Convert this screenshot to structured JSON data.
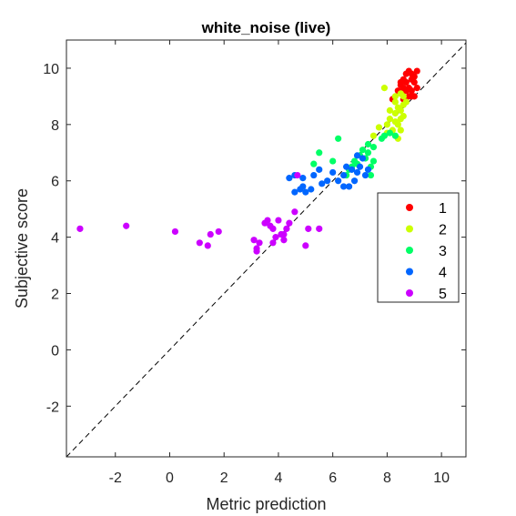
{
  "chart_data": {
    "type": "scatter",
    "title": "white_noise (live)",
    "xlabel": "Metric prediction",
    "ylabel": "Subjective score",
    "xlim": [
      -3.8,
      10.9
    ],
    "ylim": [
      -3.8,
      11.0
    ],
    "xticks": [
      -2,
      0,
      2,
      4,
      6,
      8,
      10
    ],
    "yticks": [
      -2,
      0,
      2,
      4,
      6,
      8,
      10
    ],
    "grid": false,
    "reference_line": "identity (y = x), dashed",
    "legend_position": "right",
    "series": [
      {
        "name": "1",
        "color": "#ff0000",
        "points": [
          [
            8.5,
            9.4
          ],
          [
            8.6,
            9.6
          ],
          [
            8.7,
            9.8
          ],
          [
            8.8,
            9.9
          ],
          [
            8.9,
            9.6
          ],
          [
            9.0,
            9.5
          ],
          [
            9.1,
            9.9
          ],
          [
            8.6,
            9.3
          ],
          [
            8.7,
            9.2
          ],
          [
            8.9,
            9.2
          ],
          [
            9.0,
            9.0
          ],
          [
            8.8,
            9.0
          ],
          [
            8.5,
            9.1
          ],
          [
            8.4,
            9.2
          ],
          [
            8.6,
            8.9
          ],
          [
            9.0,
            9.7
          ],
          [
            8.7,
            9.5
          ],
          [
            8.8,
            9.3
          ],
          [
            9.1,
            9.3
          ],
          [
            8.9,
            9.8
          ],
          [
            8.5,
            9.5
          ],
          [
            8.9,
            9.0
          ],
          [
            8.2,
            8.9
          ]
        ]
      },
      {
        "name": "2",
        "color": "#ccff00",
        "points": [
          [
            7.9,
            9.3
          ],
          [
            8.3,
            9.0
          ],
          [
            8.5,
            9.1
          ],
          [
            8.6,
            9.0
          ],
          [
            8.4,
            8.6
          ],
          [
            8.5,
            8.5
          ],
          [
            8.7,
            8.8
          ],
          [
            8.6,
            8.3
          ],
          [
            8.3,
            8.4
          ],
          [
            8.5,
            8.2
          ],
          [
            8.1,
            8.2
          ],
          [
            8.2,
            7.8
          ],
          [
            8.5,
            7.8
          ],
          [
            8.4,
            8.0
          ],
          [
            8.0,
            8.0
          ],
          [
            7.7,
            7.9
          ],
          [
            7.5,
            7.6
          ],
          [
            8.3,
            8.8
          ],
          [
            8.6,
            8.7
          ],
          [
            8.1,
            8.5
          ],
          [
            8.0,
            7.7
          ],
          [
            8.4,
            7.5
          ],
          [
            8.3,
            8.1
          ]
        ]
      },
      {
        "name": "3",
        "color": "#00ff66",
        "points": [
          [
            8.1,
            7.7
          ],
          [
            8.3,
            7.6
          ],
          [
            7.9,
            7.6
          ],
          [
            7.8,
            7.5
          ],
          [
            7.3,
            7.3
          ],
          [
            7.5,
            7.2
          ],
          [
            7.1,
            7.1
          ],
          [
            7.3,
            7.0
          ],
          [
            7.0,
            6.9
          ],
          [
            6.9,
            6.6
          ],
          [
            6.6,
            6.4
          ],
          [
            7.5,
            6.7
          ],
          [
            7.4,
            6.5
          ],
          [
            7.2,
            6.8
          ],
          [
            6.5,
            6.2
          ],
          [
            6.0,
            6.7
          ],
          [
            5.5,
            7.0
          ],
          [
            6.2,
            7.5
          ],
          [
            5.3,
            6.6
          ],
          [
            6.7,
            6.5
          ],
          [
            7.4,
            6.2
          ],
          [
            6.8,
            6.7
          ]
        ]
      },
      {
        "name": "4",
        "color": "#0066ff",
        "points": [
          [
            6.9,
            6.9
          ],
          [
            7.1,
            6.8
          ],
          [
            7.0,
            6.5
          ],
          [
            7.3,
            6.4
          ],
          [
            7.2,
            6.2
          ],
          [
            6.9,
            6.3
          ],
          [
            6.7,
            6.4
          ],
          [
            6.5,
            6.5
          ],
          [
            6.4,
            6.2
          ],
          [
            6.2,
            6.0
          ],
          [
            6.0,
            6.3
          ],
          [
            5.8,
            6.0
          ],
          [
            5.6,
            5.9
          ],
          [
            5.5,
            6.4
          ],
          [
            5.3,
            6.2
          ],
          [
            4.9,
            6.1
          ],
          [
            4.6,
            6.2
          ],
          [
            4.9,
            5.8
          ],
          [
            5.2,
            5.7
          ],
          [
            5.0,
            5.6
          ],
          [
            4.8,
            5.7
          ],
          [
            4.6,
            5.6
          ],
          [
            4.4,
            6.1
          ],
          [
            6.6,
            5.8
          ],
          [
            6.4,
            5.8
          ],
          [
            6.8,
            6.0
          ]
        ]
      },
      {
        "name": "5",
        "color": "#cc00ff",
        "points": [
          [
            -3.3,
            4.3
          ],
          [
            -1.6,
            4.4
          ],
          [
            0.2,
            4.2
          ],
          [
            1.1,
            3.8
          ],
          [
            1.4,
            3.7
          ],
          [
            1.5,
            4.1
          ],
          [
            1.8,
            4.2
          ],
          [
            3.1,
            3.9
          ],
          [
            3.2,
            3.6
          ],
          [
            3.3,
            3.8
          ],
          [
            3.2,
            3.5
          ],
          [
            3.5,
            4.5
          ],
          [
            3.6,
            4.6
          ],
          [
            3.8,
            4.3
          ],
          [
            3.9,
            4.0
          ],
          [
            3.8,
            3.8
          ],
          [
            4.0,
            4.6
          ],
          [
            4.1,
            4.1
          ],
          [
            4.2,
            4.1
          ],
          [
            4.3,
            4.3
          ],
          [
            4.4,
            4.5
          ],
          [
            4.6,
            4.9
          ],
          [
            4.7,
            6.2
          ],
          [
            5.0,
            3.7
          ],
          [
            5.1,
            4.3
          ],
          [
            5.5,
            4.3
          ],
          [
            3.7,
            4.4
          ],
          [
            4.2,
            3.9
          ]
        ]
      }
    ]
  }
}
